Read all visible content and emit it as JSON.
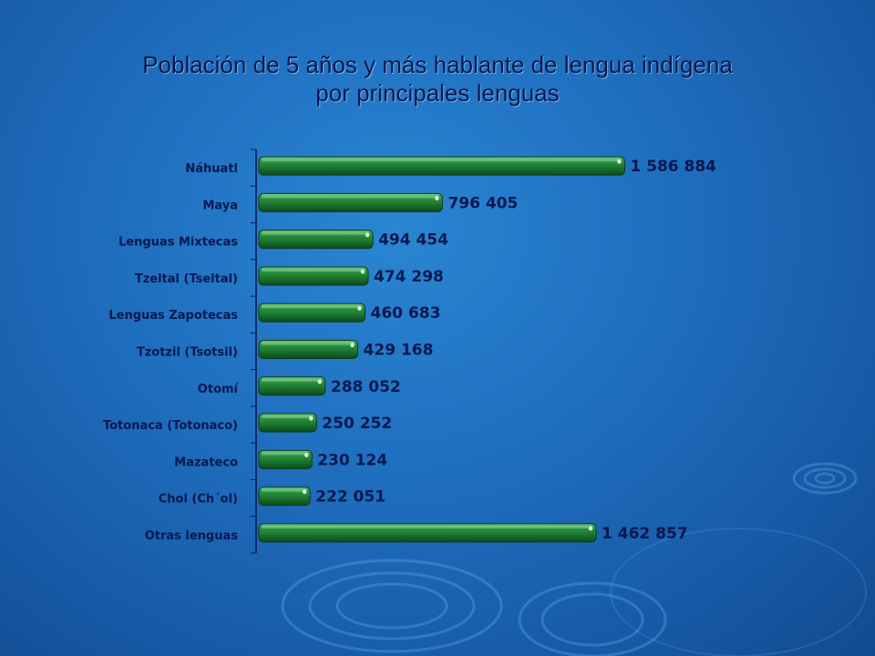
{
  "title_line_1": "Población de 5 años y más hablante de lengua indígena",
  "title_line_2": "por principales lenguas",
  "colors": {
    "background": "#1f6fbf",
    "bar": "#1e7d33",
    "bar_dark": "#0f4f1e",
    "bar_light": "#5fb86f",
    "text": "#0a1850"
  },
  "chart_data": {
    "type": "bar",
    "orientation": "horizontal",
    "title": "Población de 5 años y más hablante de lengua indígena por principales lenguas",
    "xlabel": "",
    "ylabel": "",
    "grid": false,
    "legend": "none",
    "xlim": [
      0,
      1700000
    ],
    "categories": [
      "Náhuatl",
      "Maya",
      "Lenguas Mixtecas",
      "Tzeltal (Tseltal)",
      "Lenguas Zapotecas",
      "Tzotzil (Tsotsil)",
      "Otomí",
      "Totonaca (Totonaco)",
      "Mazateco",
      "Chol (Ch´ol)",
      "Otras lenguas"
    ],
    "values": [
      1586884,
      796405,
      494454,
      474298,
      460683,
      429168,
      288052,
      250252,
      230124,
      222051,
      1462857
    ],
    "value_labels": [
      "1 586 884",
      "796 405",
      "494 454",
      "474 298",
      "460 683",
      "429 168",
      "288 052",
      "250 252",
      "230 124",
      "222 051",
      "1 462 857"
    ]
  }
}
